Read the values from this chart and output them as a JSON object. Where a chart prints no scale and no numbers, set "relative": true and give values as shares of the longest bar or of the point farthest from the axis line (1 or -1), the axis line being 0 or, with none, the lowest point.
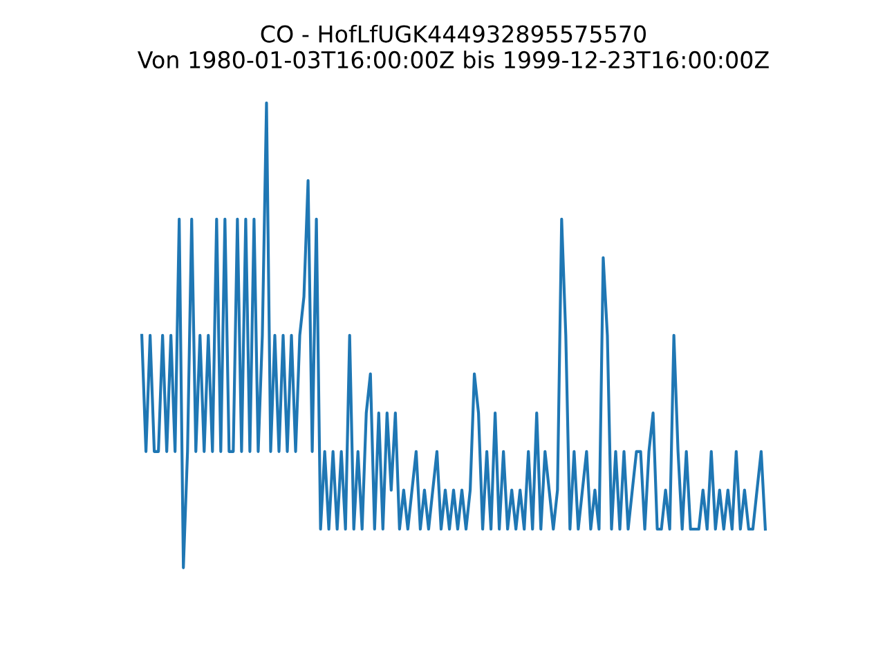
{
  "chart_data": {
    "type": "line",
    "title": "CO - HofLfUGK444932895575570",
    "subtitle": "Von 1980-01-03T16:00:00Z bis 1999-12-23T16:00:00Z",
    "relative": true,
    "color": "#1f77b4",
    "categories": [
      null,
      null,
      null,
      null,
      null,
      null,
      null,
      null,
      null,
      null,
      null,
      null,
      null,
      null,
      null,
      null,
      null,
      null,
      null,
      null,
      null,
      null,
      null,
      null,
      null,
      null,
      null,
      null,
      null,
      null,
      null,
      null,
      null,
      null,
      null,
      null,
      null,
      null,
      null,
      null,
      null,
      null,
      null,
      null,
      null,
      null,
      null,
      null,
      null,
      null,
      null,
      null,
      null,
      null,
      null,
      null,
      null,
      null,
      null,
      null,
      null,
      null,
      null,
      null,
      null,
      null,
      null,
      null,
      null,
      null,
      null,
      null,
      null,
      null,
      null,
      null,
      null,
      null,
      null,
      null,
      null,
      null,
      null,
      null,
      null,
      null,
      null,
      null,
      null,
      null,
      null,
      null,
      null,
      null,
      null,
      null,
      null,
      null,
      null,
      null,
      null,
      null,
      null,
      null,
      null,
      null,
      null,
      null,
      null,
      null,
      null,
      null,
      null,
      null,
      null,
      null,
      null,
      null,
      null,
      null,
      null,
      null,
      null,
      null,
      null,
      null,
      null,
      null,
      null,
      null,
      null,
      null,
      null,
      null,
      null,
      null,
      null,
      null,
      null,
      null,
      null,
      null,
      null,
      null,
      null,
      null,
      null,
      null,
      null,
      null,
      null
    ],
    "values": [
      0.5,
      0.25,
      0.5,
      0.25,
      0.25,
      0.5,
      0.25,
      0.5,
      0.25,
      0.75,
      0,
      0.25,
      0.75,
      0.25,
      0.5,
      0.25,
      0.5,
      0.25,
      0.75,
      0.25,
      0.75,
      0.25,
      0.25,
      0.75,
      0.25,
      0.75,
      0.25,
      0.75,
      0.25,
      0.5,
      1,
      0.25,
      0.5,
      0.25,
      0.5,
      0.25,
      0.5,
      0.25,
      0.5,
      0.583,
      0.833,
      0.25,
      0.75,
      0.083,
      0.25,
      0.083,
      0.25,
      0.083,
      0.25,
      0.083,
      0.5,
      0.083,
      0.25,
      0.083,
      0.333,
      0.417,
      0.083,
      0.333,
      0.083,
      0.333,
      0.167,
      0.333,
      0.083,
      0.167,
      0.083,
      0.167,
      0.25,
      0.083,
      0.167,
      0.083,
      0.167,
      0.25,
      0.083,
      0.167,
      0.083,
      0.167,
      0.083,
      0.167,
      0.083,
      0.167,
      0.417,
      0.333,
      0.083,
      0.25,
      0.083,
      0.333,
      0.083,
      0.25,
      0.083,
      0.167,
      0.083,
      0.167,
      0.083,
      0.25,
      0.083,
      0.333,
      0.083,
      0.25,
      0.167,
      0.083,
      0.167,
      0.75,
      0.5,
      0.083,
      0.25,
      0.083,
      0.167,
      0.25,
      0.083,
      0.167,
      0.083,
      0.667,
      0.5,
      0.083,
      0.25,
      0.083,
      0.25,
      0.083,
      0.167,
      0.25,
      0.25,
      0.083,
      0.25,
      0.333,
      0.083,
      0.083,
      0.167,
      0.083,
      0.5,
      0.25,
      0.083,
      0.25,
      0.083,
      0.083,
      0.083,
      0.167,
      0.083,
      0.25,
      0.083,
      0.167,
      0.083,
      0.167,
      0.083,
      0.25,
      0.083,
      0.167,
      0.083,
      0.083,
      0.167,
      0.25,
      0.083
    ]
  }
}
